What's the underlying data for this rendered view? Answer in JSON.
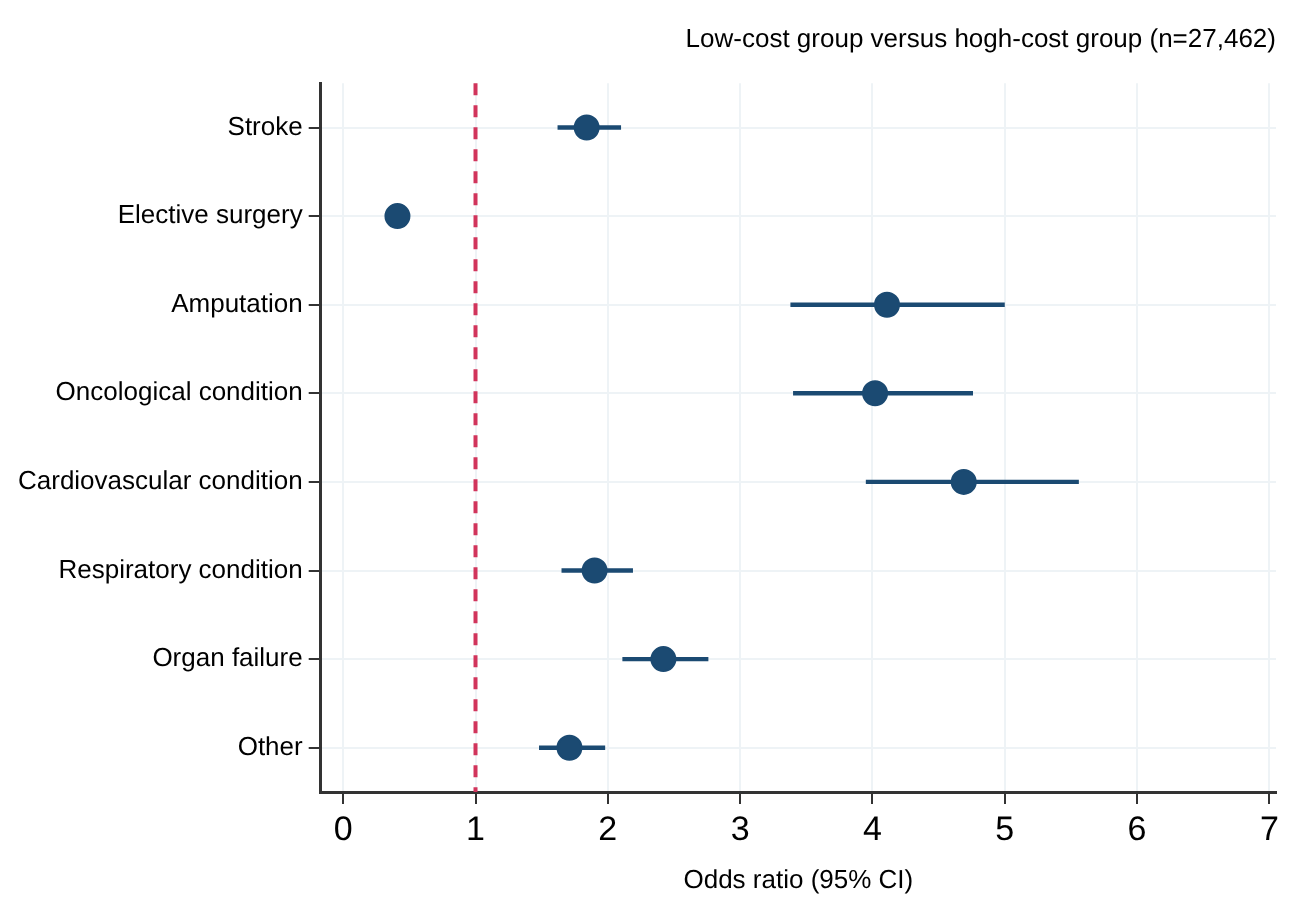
{
  "chart_data": {
    "type": "scatter",
    "orientation": "horizontal",
    "title": "Low-cost group versus hogh-cost group (n=27,462)",
    "xlabel": "Odds ratio (95% CI)",
    "categories": [
      "Stroke",
      "Elective surgery",
      "Amputation",
      "Oncological condition",
      "Cardiovascular condition",
      "Respiratory condition",
      "Organ failure",
      "Other"
    ],
    "values": [
      1.84,
      0.41,
      4.11,
      4.02,
      4.69,
      1.9,
      2.42,
      1.71
    ],
    "errors": [
      [
        1.62,
        2.1
      ],
      [
        0.37,
        0.46
      ],
      [
        3.38,
        5.0
      ],
      [
        3.4,
        4.76
      ],
      [
        3.95,
        5.56
      ],
      [
        1.65,
        2.19
      ],
      [
        2.11,
        2.76
      ],
      [
        1.48,
        1.98
      ]
    ],
    "color": "#1b4a72",
    "marker": "circle",
    "xlim": [
      -0.17,
      7.05
    ],
    "xticks": [
      0,
      1,
      2,
      3,
      4,
      5,
      6,
      7
    ],
    "ref_lines": [
      {
        "axis": "x",
        "value": 1,
        "color": "#d1345b",
        "line_style": "dashed"
      }
    ],
    "grid": true,
    "legend": false
  }
}
